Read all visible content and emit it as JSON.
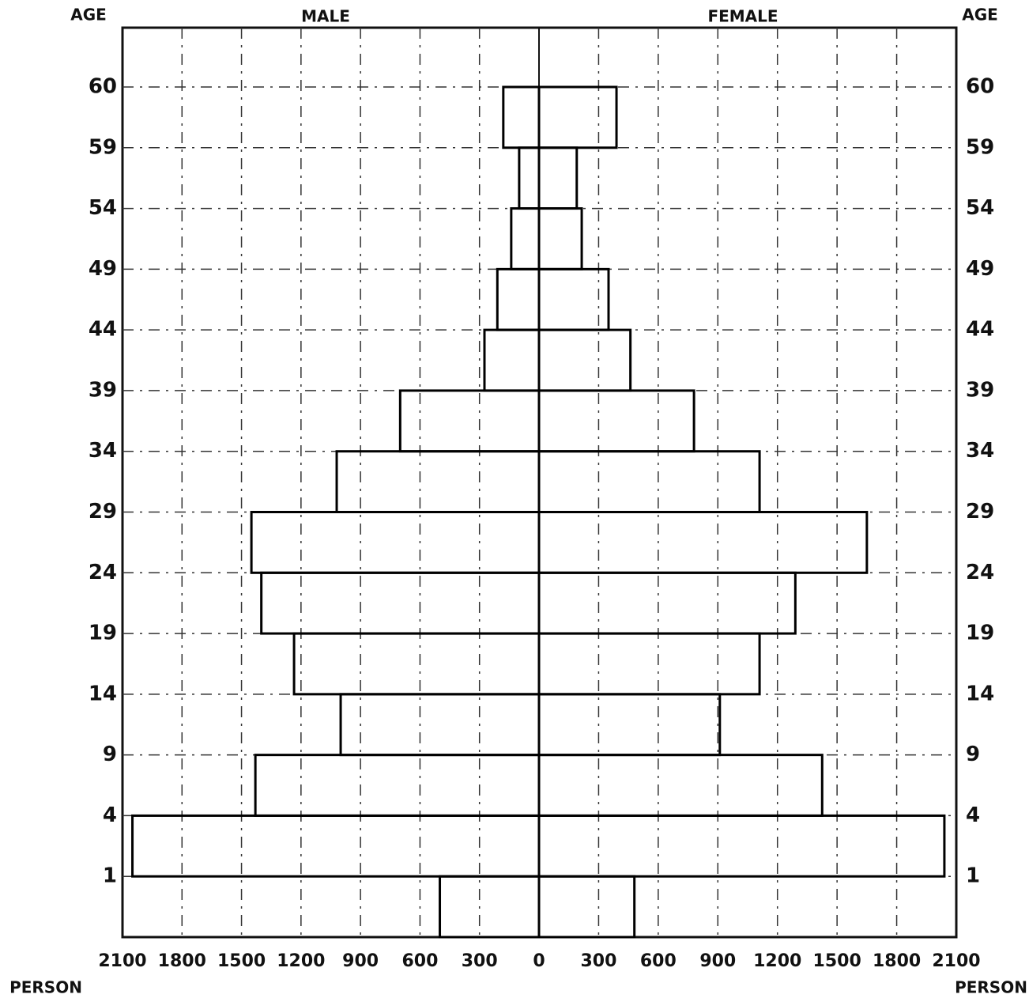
{
  "chart_data": {
    "type": "pyramid",
    "y_axis_label": "AGE",
    "x_axis_label": "PERSON",
    "y_labels": [
      "1",
      "4",
      "9",
      "14",
      "19",
      "24",
      "29",
      "34",
      "39",
      "44",
      "49",
      "54",
      "59",
      "60"
    ],
    "series": [
      {
        "name": "MALE",
        "color": "#000000",
        "values": [
          500,
          2050,
          1430,
          1000,
          1235,
          1400,
          1450,
          1020,
          700,
          275,
          210,
          140,
          100,
          180
        ]
      },
      {
        "name": "FEMALE",
        "color": "#000000",
        "values": [
          480,
          2040,
          1425,
          910,
          1110,
          1290,
          1650,
          1110,
          780,
          460,
          350,
          215,
          190,
          390
        ]
      }
    ],
    "xlim": [
      0,
      2100
    ],
    "xticks_male": [
      0,
      300,
      600,
      900,
      1200,
      1500,
      1800,
      2100
    ],
    "xticks_female": [
      300,
      600,
      900,
      1200,
      1500,
      1800,
      2100
    ],
    "grid": true
  }
}
